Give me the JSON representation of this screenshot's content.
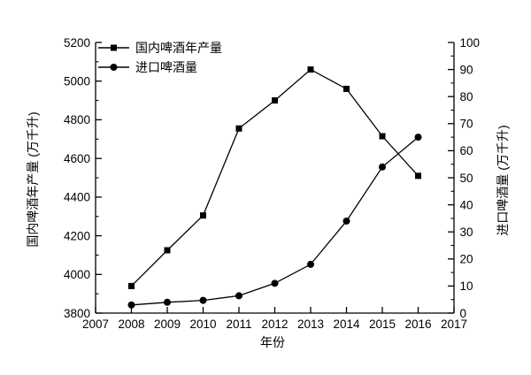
{
  "figure": {
    "background": "#ffffff",
    "ink_color": "#000000"
  },
  "chart_data": {
    "type": "line",
    "title": "",
    "xlabel": "年份",
    "ylabel_left": "国内啤酒年产量 (万千升)",
    "ylabel_right": "进口啤酒量 (万千升)",
    "xlim": [
      2007,
      2017
    ],
    "x_tick_step": 1,
    "ylim_left": [
      3800,
      5200
    ],
    "left_tick_step": 200,
    "left_minor_step": 100,
    "ylim_right": [
      0,
      100
    ],
    "right_tick_step": 10,
    "right_minor_step": 5,
    "grid": false,
    "legend_position": "top-left-inside",
    "x": [
      2008,
      2009,
      2010,
      2011,
      2012,
      2013,
      2014,
      2015,
      2016
    ],
    "series": [
      {
        "name": "国内啤酒年产量",
        "axis": "left",
        "marker": "square",
        "color": "#000000",
        "values": [
          3940,
          4125,
          4305,
          4755,
          4900,
          5060,
          4960,
          4715,
          4510
        ]
      },
      {
        "name": "进口啤酒量",
        "axis": "right",
        "marker": "circle",
        "color": "#000000",
        "values": [
          3,
          4,
          4.7,
          6.4,
          11,
          18,
          34,
          54,
          65
        ]
      }
    ]
  }
}
